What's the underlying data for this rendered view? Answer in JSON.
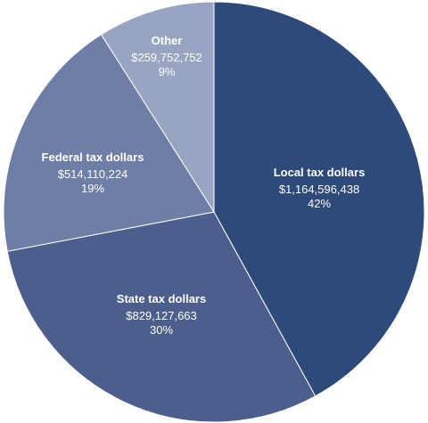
{
  "chart_data": {
    "type": "pie",
    "slices": [
      {
        "label": "Local tax dollars",
        "amount": "$1,164,596,438",
        "percent_label": "42%",
        "value": 42,
        "color": "#2d4a7a"
      },
      {
        "label": "State tax dollars",
        "amount": "$829,127,663",
        "percent_label": "30%",
        "value": 30,
        "color": "#4b5e8c"
      },
      {
        "label": "Federal tax dollars",
        "amount": "$514,110,224",
        "percent_label": "19%",
        "value": 19,
        "color": "#6f7ea6"
      },
      {
        "label": "Other",
        "amount": "$259,752,752",
        "percent_label": "9%",
        "value": 9,
        "color": "#99a4c2"
      }
    ]
  }
}
